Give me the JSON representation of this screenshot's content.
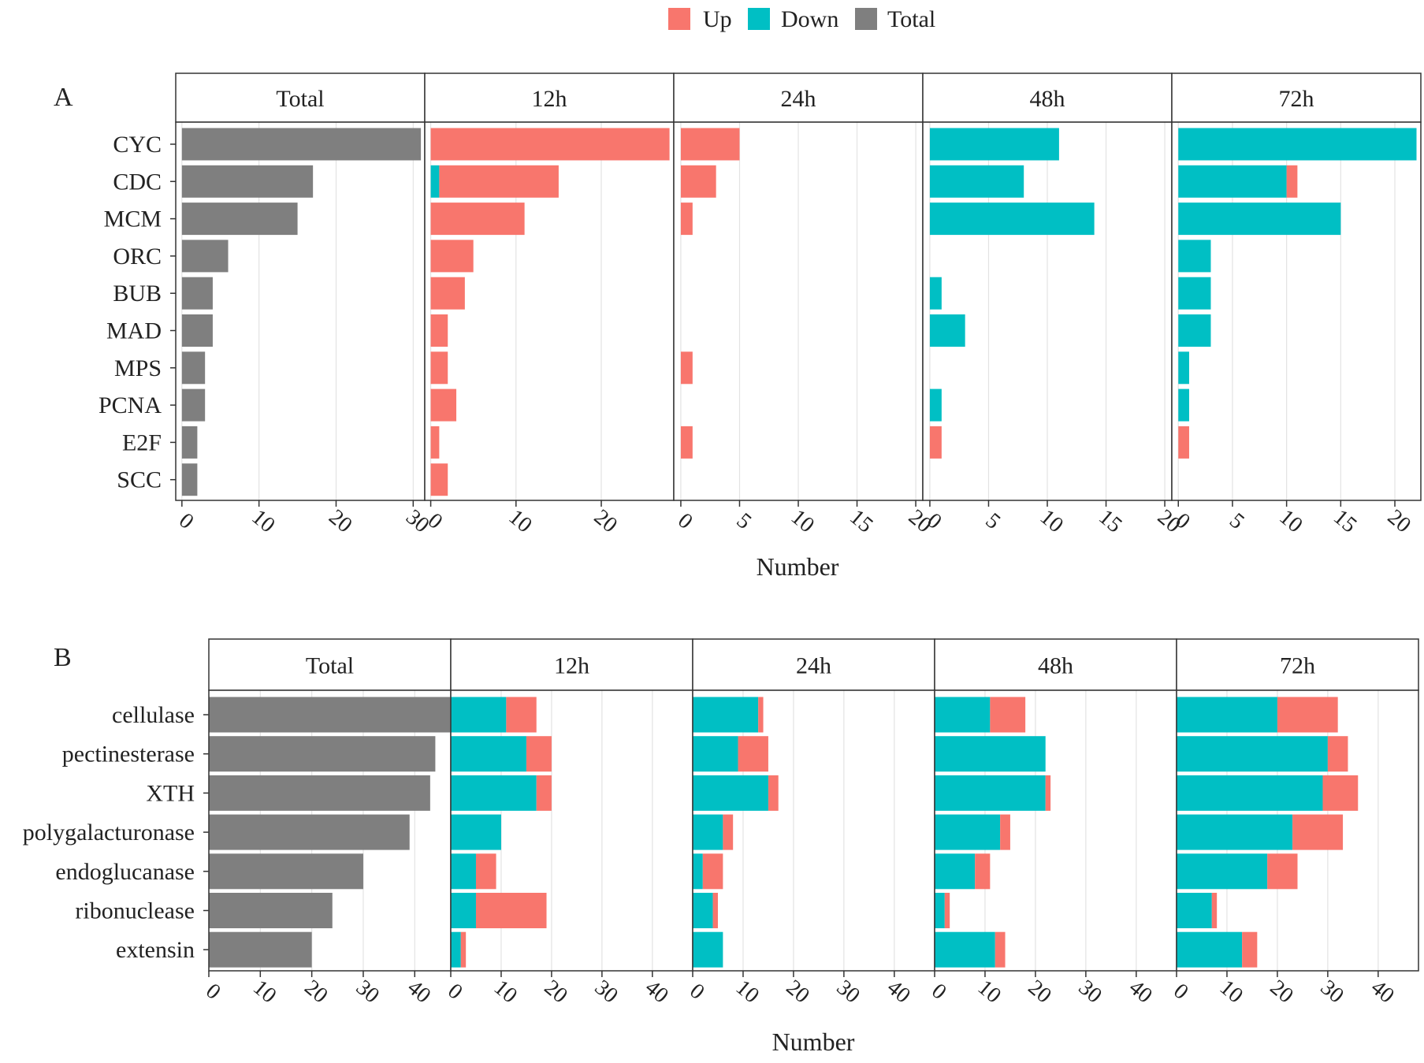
{
  "colors": {
    "up": "#F8766D",
    "down": "#00BFC4",
    "total": "#7F7F7F",
    "grid": "#E3E3E3",
    "frame": "#333333"
  },
  "legend": {
    "items": [
      {
        "key": "up",
        "label": "Up"
      },
      {
        "key": "down",
        "label": "Down"
      },
      {
        "key": "total",
        "label": "Total"
      }
    ]
  },
  "chart_data": [
    {
      "type": "bar",
      "orientation": "horizontal",
      "stacked": true,
      "panel_label": "A",
      "xlabel": "Number",
      "categories": [
        "CYC",
        "CDC",
        "MCM",
        "ORC",
        "BUB",
        "MAD",
        "MPS",
        "PCNA",
        "E2F",
        "SCC"
      ],
      "facets": [
        {
          "title": "Total",
          "xlim": [
            -0.8,
            31.5
          ],
          "ticks": [
            0,
            10,
            20,
            30
          ],
          "tick_labels": [
            "0",
            "10",
            "20",
            "30"
          ],
          "series": [
            {
              "name": "Total",
              "key": "total",
              "values": [
                31,
                17,
                15,
                6,
                4,
                4,
                3,
                3,
                2,
                2
              ]
            }
          ]
        },
        {
          "title": "12h",
          "xlim": [
            -0.7,
            28.5
          ],
          "ticks": [
            0,
            10,
            20
          ],
          "tick_labels": [
            "0",
            "10",
            "20"
          ],
          "series": [
            {
              "name": "Down",
              "key": "down",
              "values": [
                0,
                1,
                0,
                0,
                0,
                0,
                0,
                0,
                0,
                0
              ]
            },
            {
              "name": "Up",
              "key": "up",
              "values": [
                28,
                14,
                11,
                5,
                4,
                2,
                2,
                3,
                1,
                2
              ]
            }
          ]
        },
        {
          "title": "24h",
          "xlim": [
            -0.6,
            20.6
          ],
          "ticks": [
            0,
            5,
            10,
            15,
            20
          ],
          "tick_labels": [
            "0",
            "5",
            "10",
            "15",
            "20"
          ],
          "series": [
            {
              "name": "Down",
              "key": "down",
              "values": [
                0,
                0,
                0,
                0,
                0,
                0,
                0,
                0,
                0,
                0
              ]
            },
            {
              "name": "Up",
              "key": "up",
              "values": [
                5,
                3,
                1,
                0,
                0,
                0,
                1,
                0,
                1,
                0
              ]
            }
          ]
        },
        {
          "title": "48h",
          "xlim": [
            -0.6,
            20.6
          ],
          "ticks": [
            0,
            5,
            10,
            15,
            20
          ],
          "tick_labels": [
            "0",
            "5",
            "10",
            "15",
            "20"
          ],
          "series": [
            {
              "name": "Down",
              "key": "down",
              "values": [
                11,
                8,
                14,
                0,
                1,
                3,
                0,
                1,
                0,
                0
              ]
            },
            {
              "name": "Up",
              "key": "up",
              "values": [
                0,
                0,
                0,
                0,
                0,
                0,
                0,
                0,
                1,
                0
              ]
            }
          ]
        },
        {
          "title": "72h",
          "xlim": [
            -0.6,
            22.4
          ],
          "ticks": [
            0,
            5,
            10,
            15,
            20
          ],
          "tick_labels": [
            "0",
            "5",
            "10",
            "15",
            "20"
          ],
          "series": [
            {
              "name": "Down",
              "key": "down",
              "values": [
                22,
                10,
                15,
                3,
                3,
                3,
                1,
                1,
                0,
                0
              ]
            },
            {
              "name": "Up",
              "key": "up",
              "values": [
                0,
                1,
                0,
                0,
                0,
                0,
                0,
                0,
                1,
                0
              ]
            }
          ]
        }
      ]
    },
    {
      "type": "bar",
      "orientation": "horizontal",
      "stacked": true,
      "panel_label": "B",
      "xlabel": "Number",
      "categories": [
        "cellulase",
        "pectinesterase",
        "XTH",
        "polygalacturonase",
        "endoglucanase",
        "ribonuclease",
        "extensin"
      ],
      "facets": [
        {
          "title": "Total",
          "xlim": [
            0,
            47
          ],
          "ticks": [
            0,
            10,
            20,
            30,
            40
          ],
          "tick_labels": [
            "0",
            "10",
            "20",
            "30",
            "40"
          ],
          "series": [
            {
              "name": "Total",
              "key": "total",
              "values": [
                47,
                44,
                43,
                39,
                30,
                24,
                20
              ]
            }
          ]
        },
        {
          "title": "12h",
          "xlim": [
            0,
            48
          ],
          "ticks": [
            0,
            10,
            20,
            30,
            40
          ],
          "tick_labels": [
            "0",
            "10",
            "20",
            "30",
            "40"
          ],
          "series": [
            {
              "name": "Down",
              "key": "down",
              "values": [
                11,
                15,
                17,
                10,
                5,
                5,
                2
              ]
            },
            {
              "name": "Up",
              "key": "up",
              "values": [
                6,
                5,
                3,
                0,
                4,
                14,
                1
              ]
            }
          ]
        },
        {
          "title": "24h",
          "xlim": [
            0,
            48
          ],
          "ticks": [
            0,
            10,
            20,
            30,
            40
          ],
          "tick_labels": [
            "0",
            "10",
            "20",
            "30",
            "40"
          ],
          "series": [
            {
              "name": "Down",
              "key": "down",
              "values": [
                13,
                9,
                15,
                6,
                2,
                4,
                6
              ]
            },
            {
              "name": "Up",
              "key": "up",
              "values": [
                1,
                6,
                2,
                2,
                4,
                1,
                0
              ]
            }
          ]
        },
        {
          "title": "48h",
          "xlim": [
            0,
            48
          ],
          "ticks": [
            0,
            10,
            20,
            30,
            40
          ],
          "tick_labels": [
            "0",
            "10",
            "20",
            "30",
            "40"
          ],
          "series": [
            {
              "name": "Down",
              "key": "down",
              "values": [
                11,
                22,
                22,
                13,
                8,
                2,
                12
              ]
            },
            {
              "name": "Up",
              "key": "up",
              "values": [
                7,
                0,
                1,
                2,
                3,
                1,
                2
              ]
            }
          ]
        },
        {
          "title": "72h",
          "xlim": [
            0,
            48
          ],
          "ticks": [
            0,
            10,
            20,
            30,
            40
          ],
          "tick_labels": [
            "0",
            "10",
            "20",
            "30",
            "40"
          ],
          "series": [
            {
              "name": "Down",
              "key": "down",
              "values": [
                20,
                30,
                29,
                23,
                18,
                7,
                13
              ]
            },
            {
              "name": "Up",
              "key": "up",
              "values": [
                12,
                4,
                7,
                10,
                6,
                1,
                3
              ]
            }
          ]
        }
      ]
    }
  ]
}
